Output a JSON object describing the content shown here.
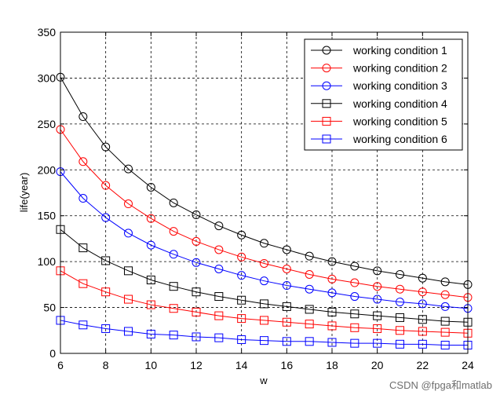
{
  "watermark": "CSDN @fpga和matlab",
  "chart_data": {
    "type": "line",
    "xlabel": "w",
    "ylabel": "life(year)",
    "xlim": [
      6,
      24
    ],
    "ylim": [
      0,
      350
    ],
    "xticks": [
      6,
      8,
      10,
      12,
      14,
      16,
      18,
      20,
      22,
      24
    ],
    "yticks": [
      0,
      50,
      100,
      150,
      200,
      250,
      300,
      350
    ],
    "grid": true,
    "legend_position": "top-right",
    "x": [
      6,
      7,
      8,
      9,
      10,
      11,
      12,
      13,
      14,
      15,
      16,
      17,
      18,
      19,
      20,
      21,
      22,
      23,
      24
    ],
    "series": [
      {
        "name": "working condition 1",
        "color": "#000000",
        "marker": "circle",
        "values": [
          301,
          258,
          225,
          201,
          181,
          164,
          151,
          139,
          129,
          120,
          113,
          106,
          100,
          95,
          90,
          86,
          82,
          78,
          75
        ]
      },
      {
        "name": "working condition 2",
        "color": "#ff0000",
        "marker": "circle",
        "values": [
          244,
          209,
          183,
          163,
          147,
          133,
          122,
          113,
          105,
          98,
          92,
          86,
          81,
          77,
          73,
          70,
          67,
          64,
          61
        ]
      },
      {
        "name": "working condition 3",
        "color": "#0000ff",
        "marker": "circle",
        "values": [
          198,
          169,
          148,
          131,
          118,
          108,
          99,
          92,
          85,
          79,
          74,
          70,
          66,
          62,
          59,
          56,
          54,
          51,
          49
        ]
      },
      {
        "name": "working condition 4",
        "color": "#000000",
        "marker": "square",
        "values": [
          135,
          115,
          101,
          90,
          80,
          73,
          67,
          62,
          58,
          54,
          51,
          48,
          45,
          43,
          41,
          39,
          37,
          35,
          34
        ]
      },
      {
        "name": "working condition 5",
        "color": "#ff0000",
        "marker": "square",
        "values": [
          90,
          76,
          67,
          59,
          53,
          49,
          45,
          41,
          38,
          36,
          34,
          32,
          30,
          28,
          27,
          25,
          24,
          23,
          22
        ]
      },
      {
        "name": "working condition 6",
        "color": "#0000ff",
        "marker": "square",
        "values": [
          36,
          31,
          27,
          24,
          21,
          20,
          18,
          17,
          15,
          14,
          13,
          13,
          12,
          11,
          11,
          10,
          10,
          9,
          9
        ]
      }
    ]
  }
}
